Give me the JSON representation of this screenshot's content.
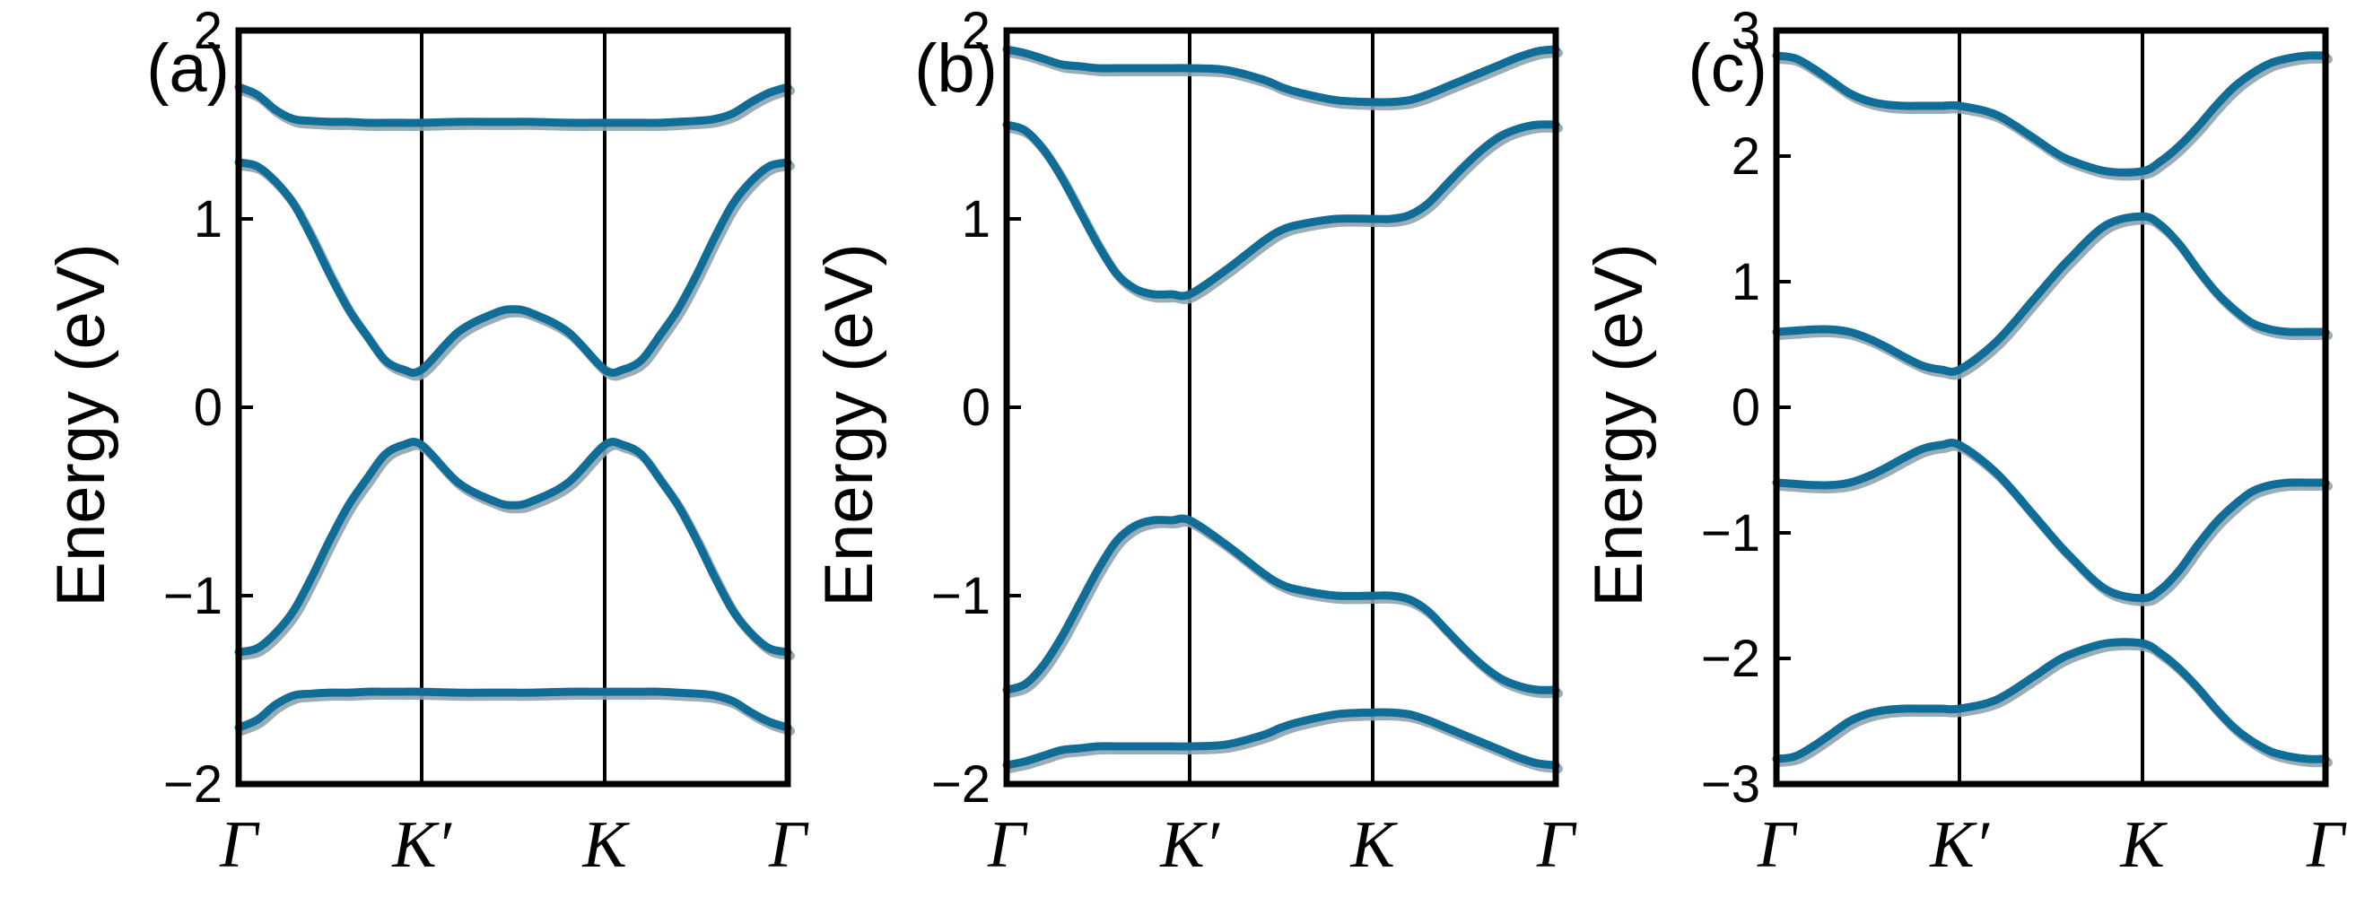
{
  "chart_data": [
    {
      "type": "line",
      "panel_label": "(a)",
      "ylabel": "Energy (eV)",
      "ylim": [
        -2,
        2
      ],
      "yticks": [
        -2,
        -1,
        0,
        1,
        2
      ],
      "ytick_labels": [
        "−2",
        "−1",
        "0",
        "1",
        "2"
      ],
      "xtick_labels": [
        "Γ",
        "K′",
        "K",
        "Γ"
      ],
      "x": [
        0,
        0.1,
        0.2,
        0.3,
        0.4,
        0.5,
        0.6,
        0.7,
        0.8,
        0.9,
        1.0,
        1.2,
        1.4,
        1.5,
        1.6,
        1.8,
        2.0,
        2.1,
        2.2,
        2.3,
        2.4,
        2.5,
        2.6,
        2.7,
        2.8,
        2.9,
        3.0
      ],
      "series": [
        {
          "values": [
            1.7,
            1.66,
            1.58,
            1.53,
            1.52,
            1.515,
            1.515,
            1.51,
            1.51,
            1.51,
            1.51,
            1.515,
            1.515,
            1.515,
            1.515,
            1.51,
            1.51,
            1.51,
            1.51,
            1.51,
            1.515,
            1.52,
            1.53,
            1.56,
            1.62,
            1.67,
            1.7
          ]
        },
        {
          "values": [
            1.3,
            1.28,
            1.2,
            1.08,
            0.9,
            0.7,
            0.52,
            0.38,
            0.25,
            0.2,
            0.2,
            0.4,
            0.5,
            0.52,
            0.5,
            0.4,
            0.2,
            0.2,
            0.25,
            0.38,
            0.52,
            0.7,
            0.9,
            1.08,
            1.2,
            1.28,
            1.3
          ]
        },
        {
          "values": [
            -1.3,
            -1.28,
            -1.2,
            -1.08,
            -0.9,
            -0.7,
            -0.52,
            -0.38,
            -0.25,
            -0.2,
            -0.2,
            -0.4,
            -0.5,
            -0.52,
            -0.5,
            -0.4,
            -0.2,
            -0.2,
            -0.25,
            -0.38,
            -0.52,
            -0.7,
            -0.9,
            -1.08,
            -1.2,
            -1.28,
            -1.3
          ]
        },
        {
          "values": [
            -1.7,
            -1.66,
            -1.58,
            -1.53,
            -1.52,
            -1.515,
            -1.515,
            -1.51,
            -1.51,
            -1.51,
            -1.51,
            -1.515,
            -1.515,
            -1.515,
            -1.515,
            -1.51,
            -1.51,
            -1.51,
            -1.51,
            -1.51,
            -1.515,
            -1.52,
            -1.53,
            -1.56,
            -1.62,
            -1.67,
            -1.7
          ]
        }
      ]
    },
    {
      "type": "line",
      "panel_label": "(b)",
      "ylabel": "Energy (eV)",
      "ylim": [
        -2,
        2
      ],
      "yticks": [
        -2,
        -1,
        0,
        1,
        2
      ],
      "ytick_labels": [
        "−2",
        "−1",
        "0",
        "1",
        "2"
      ],
      "xtick_labels": [
        "Γ",
        "K′",
        "K",
        "Γ"
      ],
      "x": [
        0,
        0.1,
        0.2,
        0.3,
        0.4,
        0.5,
        0.6,
        0.7,
        0.8,
        0.9,
        1.0,
        1.2,
        1.4,
        1.5,
        1.6,
        1.8,
        2.0,
        2.1,
        2.2,
        2.3,
        2.4,
        2.5,
        2.6,
        2.7,
        2.8,
        2.9,
        3.0
      ],
      "series": [
        {
          "values": [
            1.9,
            1.88,
            1.85,
            1.82,
            1.81,
            1.8,
            1.8,
            1.8,
            1.8,
            1.8,
            1.8,
            1.79,
            1.74,
            1.7,
            1.67,
            1.63,
            1.62,
            1.62,
            1.63,
            1.66,
            1.7,
            1.74,
            1.78,
            1.82,
            1.86,
            1.89,
            1.9
          ]
        },
        {
          "values": [
            1.5,
            1.47,
            1.37,
            1.22,
            1.04,
            0.86,
            0.71,
            0.63,
            0.6,
            0.6,
            0.6,
            0.73,
            0.88,
            0.94,
            0.97,
            1.0,
            1.0,
            1.0,
            1.02,
            1.08,
            1.18,
            1.28,
            1.37,
            1.44,
            1.48,
            1.5,
            1.5
          ]
        },
        {
          "values": [
            -1.5,
            -1.47,
            -1.37,
            -1.22,
            -1.04,
            -0.86,
            -0.71,
            -0.63,
            -0.6,
            -0.6,
            -0.6,
            -0.73,
            -0.88,
            -0.94,
            -0.97,
            -1.0,
            -1.0,
            -1.0,
            -1.02,
            -1.08,
            -1.18,
            -1.28,
            -1.37,
            -1.44,
            -1.48,
            -1.5,
            -1.5
          ]
        },
        {
          "values": [
            -1.9,
            -1.88,
            -1.85,
            -1.82,
            -1.81,
            -1.8,
            -1.8,
            -1.8,
            -1.8,
            -1.8,
            -1.8,
            -1.79,
            -1.74,
            -1.7,
            -1.67,
            -1.63,
            -1.62,
            -1.62,
            -1.63,
            -1.66,
            -1.7,
            -1.74,
            -1.78,
            -1.82,
            -1.86,
            -1.89,
            -1.9
          ]
        }
      ]
    },
    {
      "type": "line",
      "panel_label": "(c)",
      "ylabel": "Energy (eV)",
      "ylim": [
        -3,
        3
      ],
      "yticks": [
        -3,
        -2,
        -1,
        0,
        1,
        2,
        3
      ],
      "ytick_labels": [
        "−3",
        "−2",
        "−1",
        "0",
        "1",
        "2",
        "3"
      ],
      "xtick_labels": [
        "Γ",
        "K′",
        "K",
        "Γ"
      ],
      "x": [
        0,
        0.1,
        0.2,
        0.3,
        0.4,
        0.5,
        0.6,
        0.7,
        0.8,
        0.9,
        1.0,
        1.2,
        1.4,
        1.5,
        1.6,
        1.8,
        2.0,
        2.1,
        2.2,
        2.3,
        2.4,
        2.5,
        2.6,
        2.7,
        2.8,
        2.9,
        3.0
      ],
      "series": [
        {
          "values": [
            2.8,
            2.78,
            2.7,
            2.6,
            2.5,
            2.44,
            2.41,
            2.4,
            2.4,
            2.4,
            2.4,
            2.33,
            2.15,
            2.05,
            1.97,
            1.88,
            1.88,
            1.96,
            2.08,
            2.23,
            2.4,
            2.55,
            2.66,
            2.74,
            2.78,
            2.8,
            2.8
          ]
        },
        {
          "values": [
            0.6,
            0.61,
            0.62,
            0.62,
            0.6,
            0.55,
            0.48,
            0.4,
            0.33,
            0.3,
            0.3,
            0.52,
            0.85,
            1.02,
            1.18,
            1.45,
            1.52,
            1.45,
            1.3,
            1.1,
            0.92,
            0.78,
            0.67,
            0.62,
            0.6,
            0.6,
            0.6
          ]
        },
        {
          "values": [
            -0.6,
            -0.61,
            -0.62,
            -0.62,
            -0.6,
            -0.55,
            -0.48,
            -0.4,
            -0.33,
            -0.3,
            -0.3,
            -0.52,
            -0.85,
            -1.02,
            -1.18,
            -1.45,
            -1.52,
            -1.45,
            -1.3,
            -1.1,
            -0.92,
            -0.78,
            -0.67,
            -0.62,
            -0.6,
            -0.6,
            -0.6
          ]
        },
        {
          "values": [
            -2.8,
            -2.78,
            -2.7,
            -2.6,
            -2.5,
            -2.44,
            -2.41,
            -2.4,
            -2.4,
            -2.4,
            -2.4,
            -2.33,
            -2.15,
            -2.05,
            -1.97,
            -1.88,
            -1.88,
            -1.96,
            -2.08,
            -2.23,
            -2.4,
            -2.55,
            -2.66,
            -2.74,
            -2.78,
            -2.8,
            -2.8
          ]
        }
      ]
    }
  ]
}
